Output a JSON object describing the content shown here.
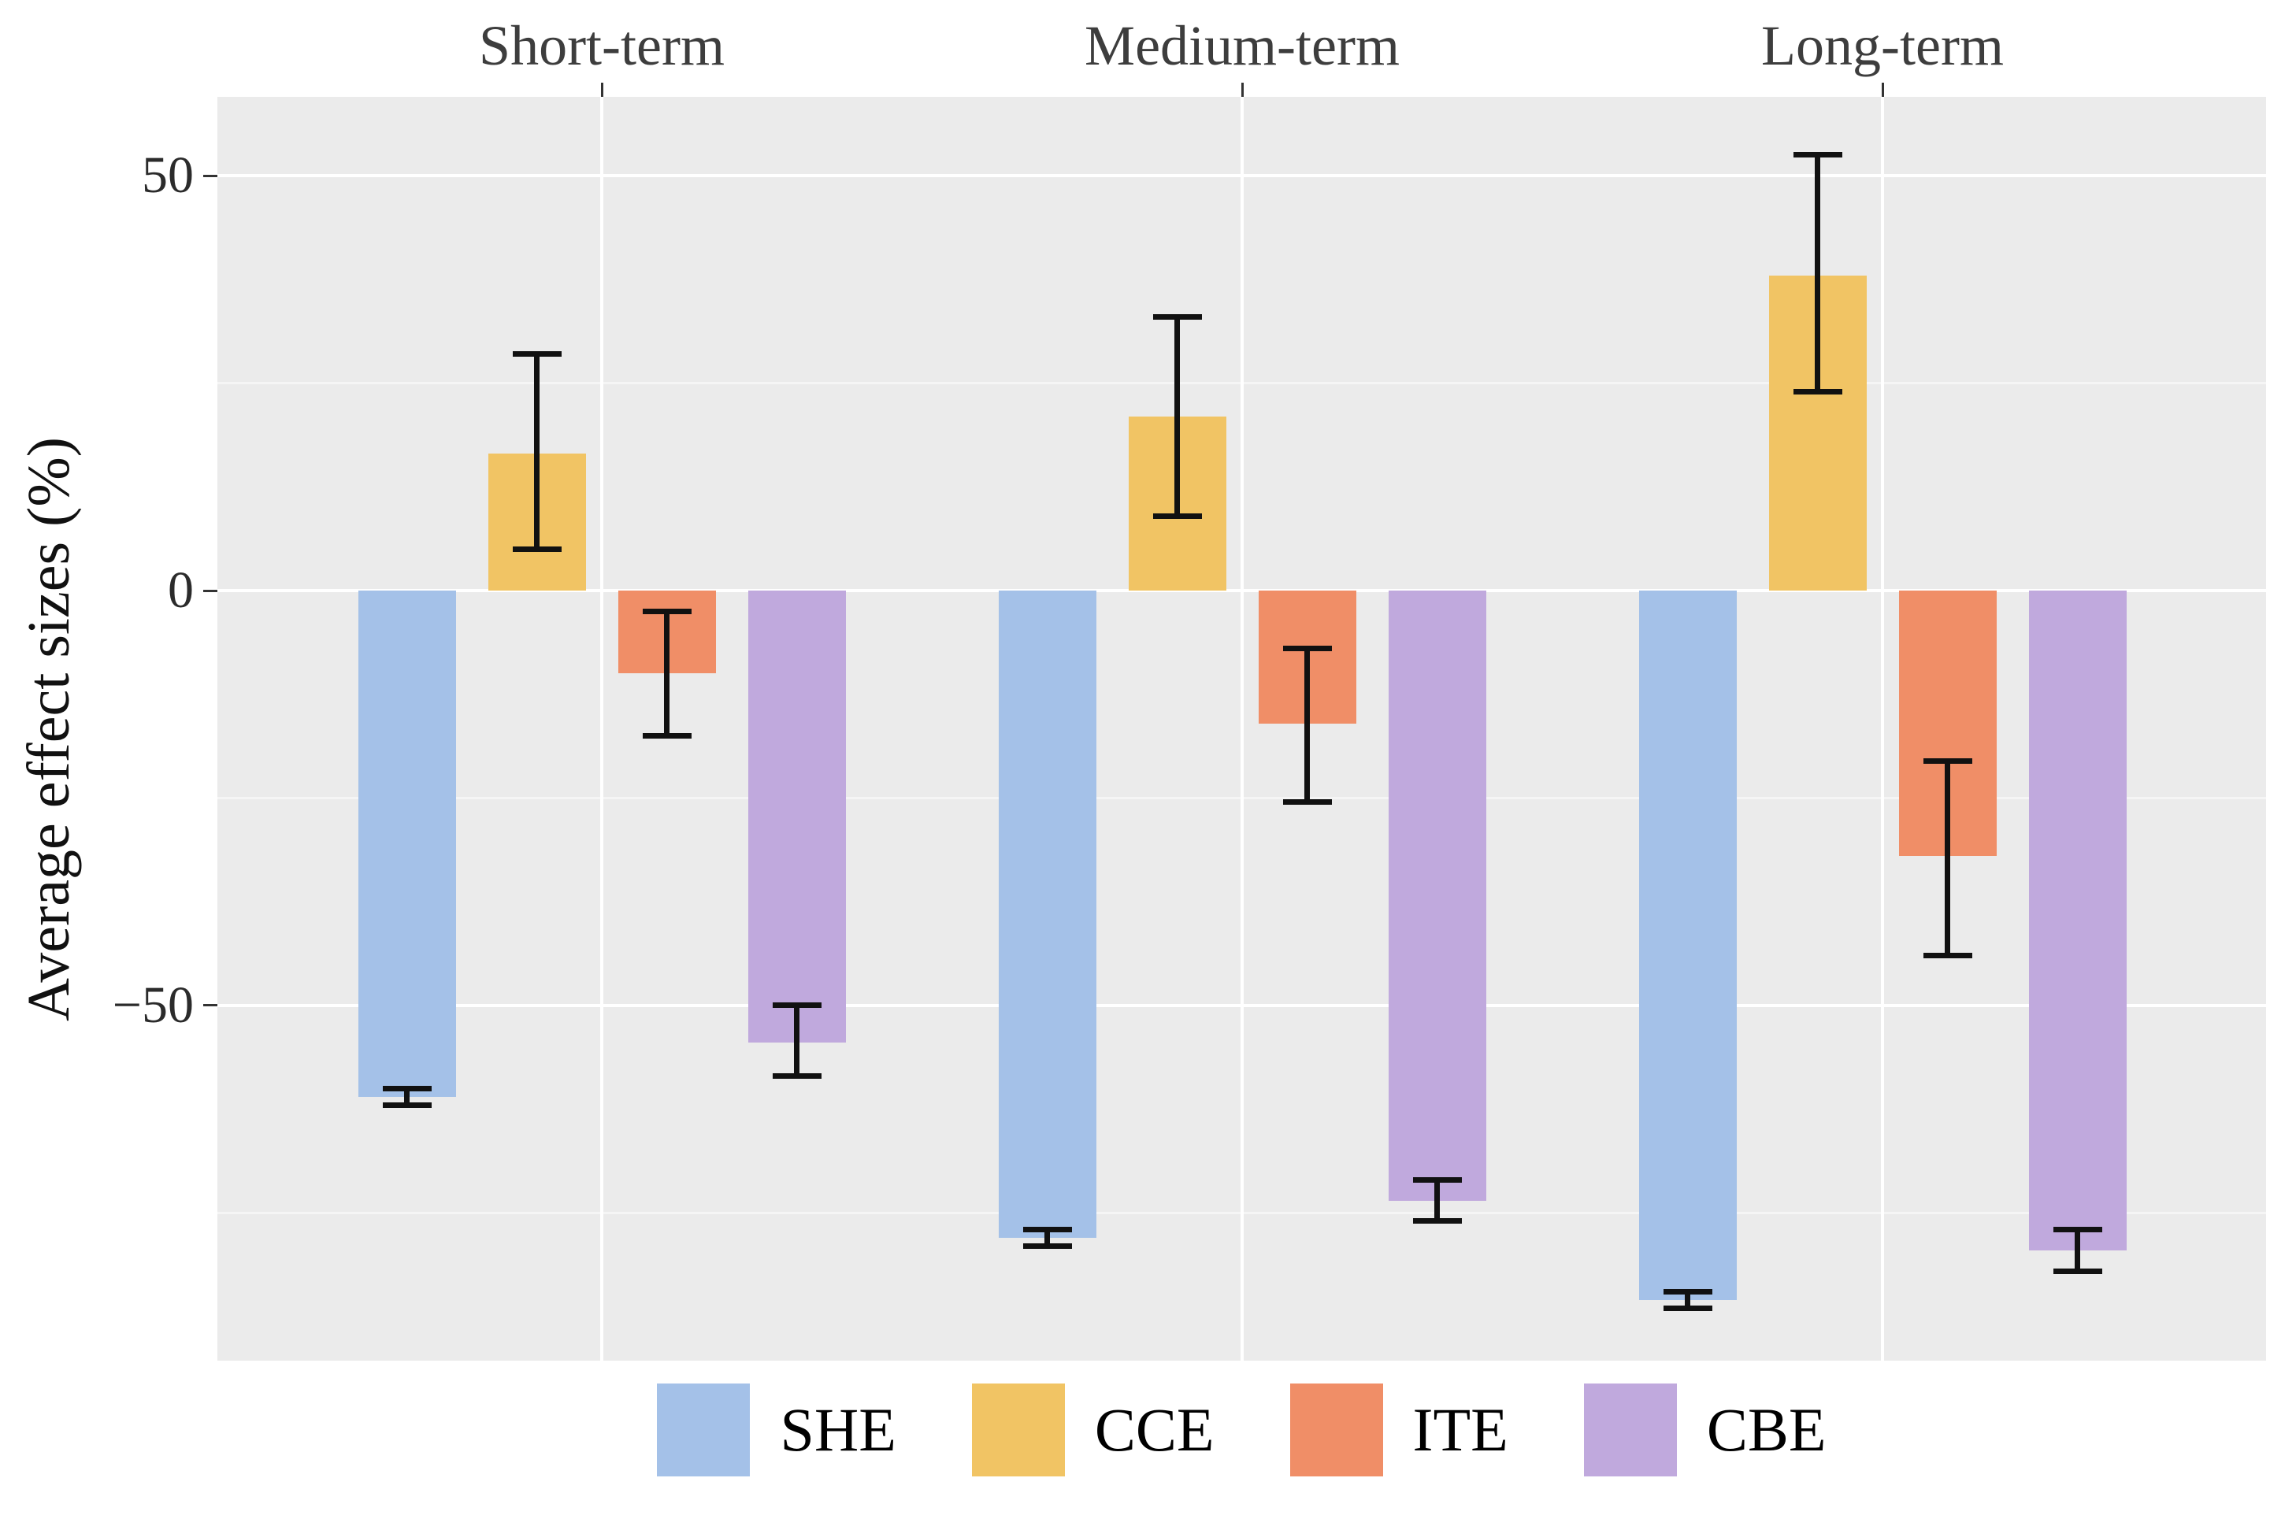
{
  "chart_data": {
    "type": "bar",
    "title": "",
    "xlabel": "",
    "ylabel": "Average effect sizes (%)",
    "categories": [
      "Short-term",
      "Medium-term",
      "Long-term"
    ],
    "series": [
      {
        "name": "SHE",
        "color": "#a4c1e8",
        "values": [
          -61,
          -78,
          -85.5
        ],
        "ci_low": [
          -62,
          -79,
          -86.5
        ],
        "ci_high": [
          -60,
          -77,
          -84.5
        ]
      },
      {
        "name": "CCE",
        "color": "#f1c464",
        "values": [
          16.5,
          21,
          38
        ],
        "ci_low": [
          5,
          9,
          24
        ],
        "ci_high": [
          28.5,
          33,
          52.5
        ]
      },
      {
        "name": "ITE",
        "color": "#f08e67",
        "values": [
          -10,
          -16,
          -32
        ],
        "ci_low": [
          -17.5,
          -25.5,
          -44
        ],
        "ci_high": [
          -2.5,
          -7,
          -20.5
        ]
      },
      {
        "name": "CBE",
        "color": "#c0a9dd",
        "values": [
          -54.5,
          -73.5,
          -79.5
        ],
        "ci_low": [
          -58.5,
          -76,
          -82
        ],
        "ci_high": [
          -50,
          -71,
          -77
        ]
      }
    ],
    "ylim": [
      -92.8,
      59.5
    ],
    "yticks_major": [
      50,
      0,
      -50
    ],
    "ytick_labels": [
      "50",
      "0",
      "−50"
    ],
    "yticks_minor": [
      25,
      -25,
      -75
    ],
    "grid": "on",
    "legend_position": "bottom",
    "panel_bg": "#ebebeb",
    "grid_major_color": "#ffffff",
    "grid_minor_color": "#f5f5f5",
    "error_bar_color": "#111111",
    "axis_text_color": "#2b2b2b",
    "facet_text_color": "#3d3d3d"
  }
}
